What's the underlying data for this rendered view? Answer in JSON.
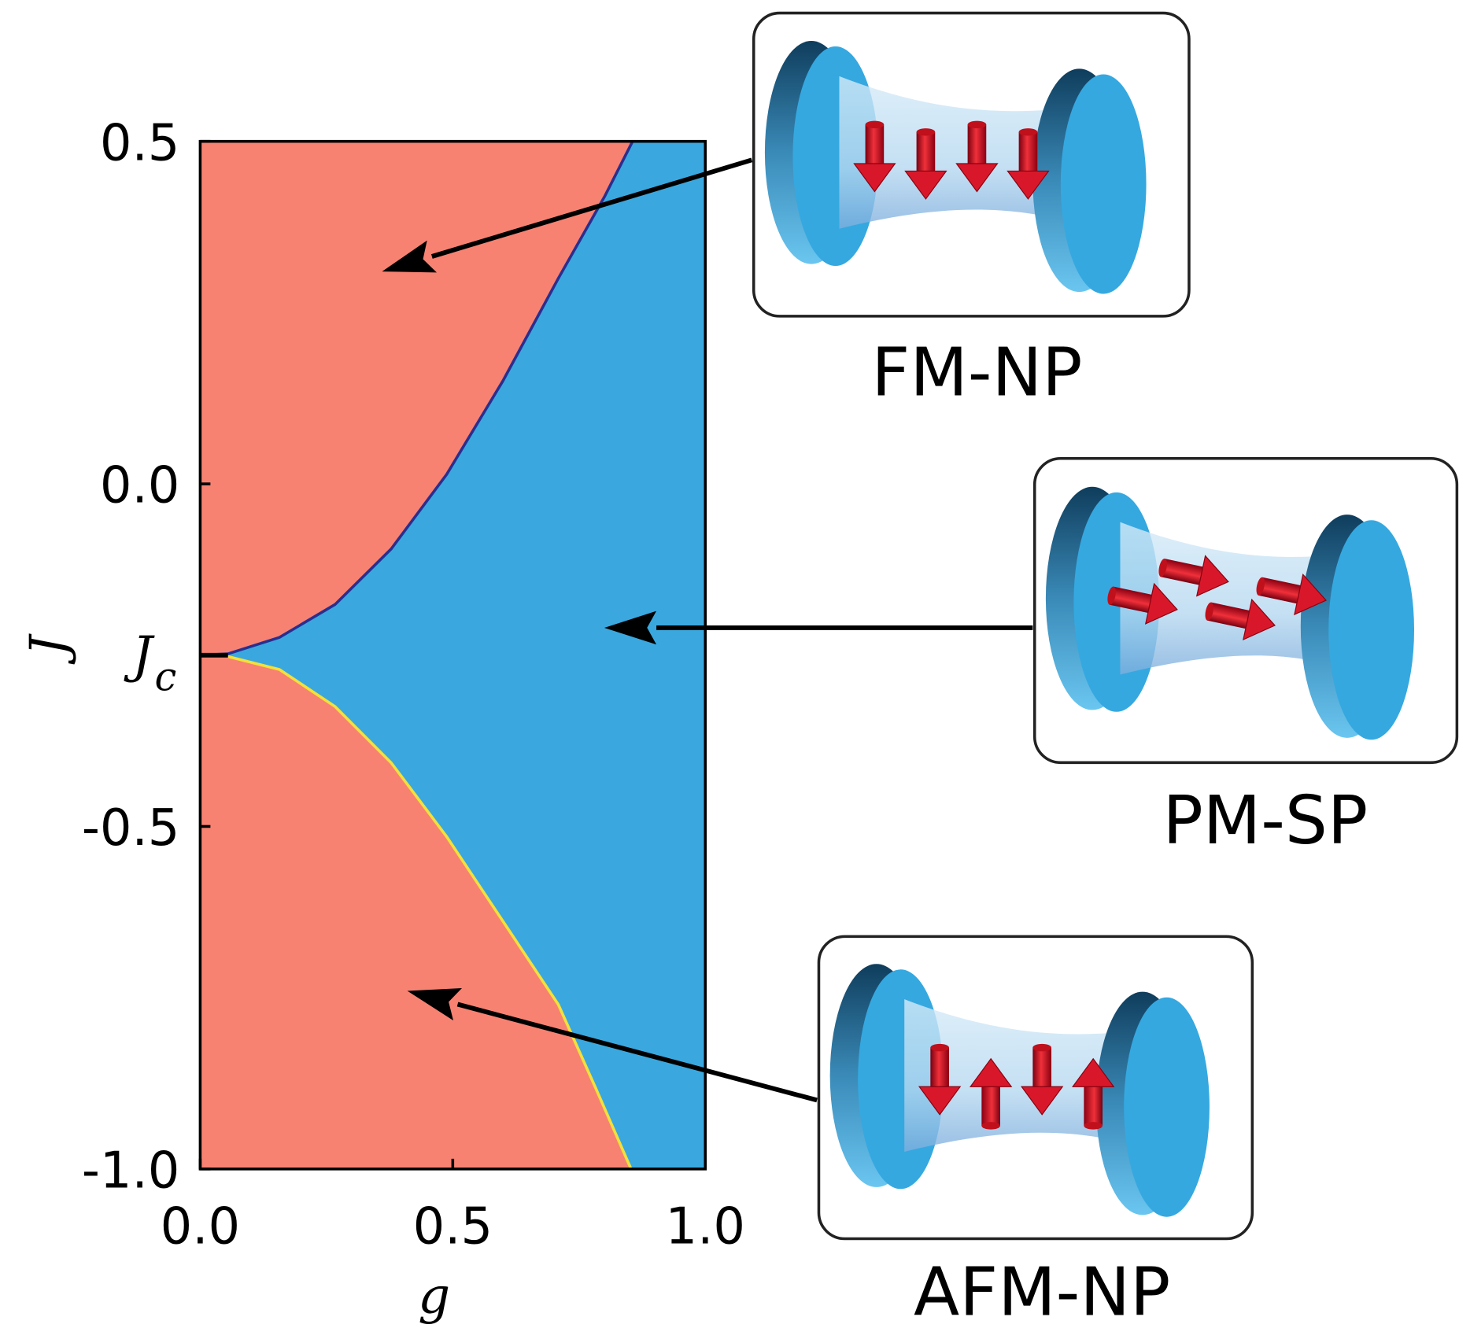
{
  "chart_data": {
    "type": "phase",
    "x_label": "g",
    "y_label": "J",
    "xlim": [
      0.0,
      1.0
    ],
    "ylim": [
      -1.0,
      0.5
    ],
    "xticks": [
      {
        "value": 0.0,
        "label": "0.0"
      },
      {
        "value": 0.5,
        "label": "0.5"
      },
      {
        "value": 1.0,
        "label": "1.0"
      }
    ],
    "yticks": [
      {
        "value": -1.0,
        "label": "-1.0"
      },
      {
        "value": -0.5,
        "label": "-0.5"
      },
      {
        "value": 0.0,
        "label": "0.0"
      },
      {
        "value": 0.5,
        "label": "0.5"
      }
    ],
    "jc_marker": {
      "value": -0.25,
      "label": "J",
      "subscript": "c"
    },
    "colors": {
      "np_region": "#f88272",
      "sp_region": "#3aa8df"
    },
    "series": [
      {
        "color": "#2a2f8f",
        "x": [
          0.0,
          0.055,
          0.157,
          0.267,
          0.378,
          0.488,
          0.599,
          0.709,
          0.801,
          0.856
        ],
        "values": [
          -0.25,
          -0.248,
          -0.224,
          -0.176,
          -0.095,
          0.014,
          0.15,
          0.3,
          0.42,
          0.5
        ]
      },
      {
        "color": "#f2e13a",
        "x": [
          0.055,
          0.157,
          0.267,
          0.378,
          0.488,
          0.599,
          0.709,
          0.783,
          0.853
        ],
        "values": [
          -0.252,
          -0.271,
          -0.325,
          -0.407,
          -0.515,
          -0.638,
          -0.76,
          -0.882,
          -1.0
        ]
      }
    ],
    "annotations": [
      {
        "text": "FM-NP",
        "x": 0.36,
        "y": 0.31
      },
      {
        "text": "PM-SP",
        "x": 0.8,
        "y": -0.21
      },
      {
        "text": "AFM-NP",
        "x": 0.41,
        "y": -0.74
      }
    ]
  }
}
